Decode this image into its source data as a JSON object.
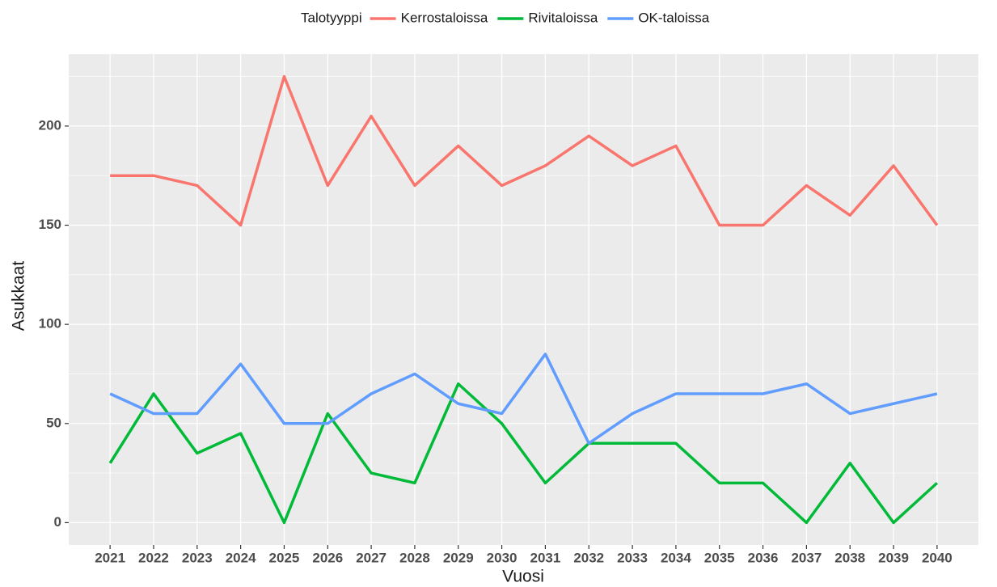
{
  "chart_data": {
    "type": "line",
    "x_label": "Vuosi",
    "y_label": "Asukkaat",
    "legend_title": "Talotyyppi",
    "legend_position": "top",
    "x": [
      2021,
      2022,
      2023,
      2024,
      2025,
      2026,
      2027,
      2028,
      2029,
      2030,
      2031,
      2032,
      2033,
      2034,
      2035,
      2036,
      2037,
      2038,
      2039,
      2040
    ],
    "series": [
      {
        "name": "Kerrostaloissa",
        "color": "#F8766D",
        "values": [
          175,
          175,
          170,
          150,
          225,
          170,
          205,
          170,
          190,
          170,
          180,
          195,
          180,
          190,
          150,
          150,
          170,
          155,
          180,
          150
        ]
      },
      {
        "name": "Rivitaloissa",
        "color": "#00BA38",
        "values": [
          30,
          65,
          35,
          45,
          0,
          55,
          25,
          20,
          70,
          50,
          20,
          40,
          40,
          40,
          20,
          20,
          0,
          30,
          0,
          20
        ]
      },
      {
        "name": "OK-taloissa",
        "color": "#619CFF",
        "values": [
          65,
          55,
          55,
          80,
          50,
          50,
          65,
          75,
          60,
          55,
          85,
          40,
          55,
          65,
          65,
          65,
          70,
          55,
          60,
          65
        ]
      }
    ],
    "xlim": [
      2020.05,
      2040.95
    ],
    "xticks": [
      2021,
      2022,
      2023,
      2024,
      2025,
      2026,
      2027,
      2028,
      2029,
      2030,
      2031,
      2032,
      2033,
      2034,
      2035,
      2036,
      2037,
      2038,
      2039,
      2040
    ],
    "ylim": [
      -11.25,
      236.25
    ],
    "yticks": [
      0,
      50,
      100,
      150,
      200
    ],
    "grid": true
  }
}
